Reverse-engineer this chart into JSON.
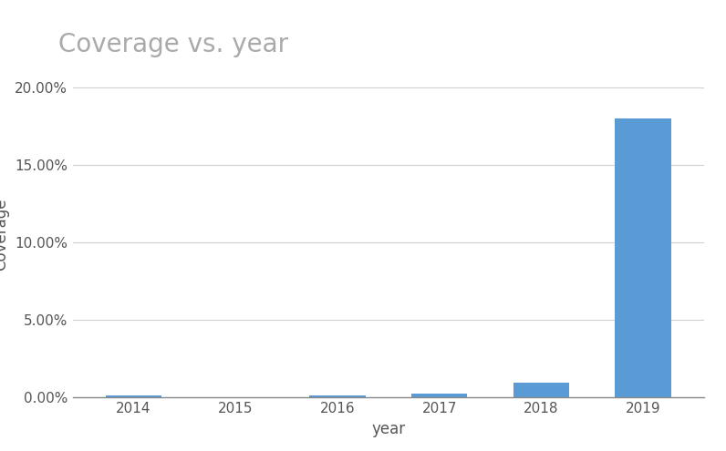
{
  "categories": [
    "2014",
    "2015",
    "2016",
    "2017",
    "2018",
    "2019"
  ],
  "values": [
    0.001,
    5e-05,
    0.0007,
    0.002,
    0.009,
    0.18
  ],
  "bar_color": "#5b9bd5",
  "title": "Coverage vs. year",
  "xlabel": "year",
  "ylabel": "Coverage",
  "ylim": [
    0,
    0.21
  ],
  "yticks": [
    0.0,
    0.05,
    0.1,
    0.15,
    0.2
  ],
  "ytick_labels": [
    "0.00%",
    "5.00%",
    "10.00%",
    "15.00%",
    "20.00%"
  ],
  "title_fontsize": 20,
  "axis_label_fontsize": 12,
  "tick_fontsize": 11,
  "background_color": "#ffffff",
  "grid_color": "#d0d0d0",
  "title_color": "#aaaaaa",
  "tick_color": "#555555"
}
